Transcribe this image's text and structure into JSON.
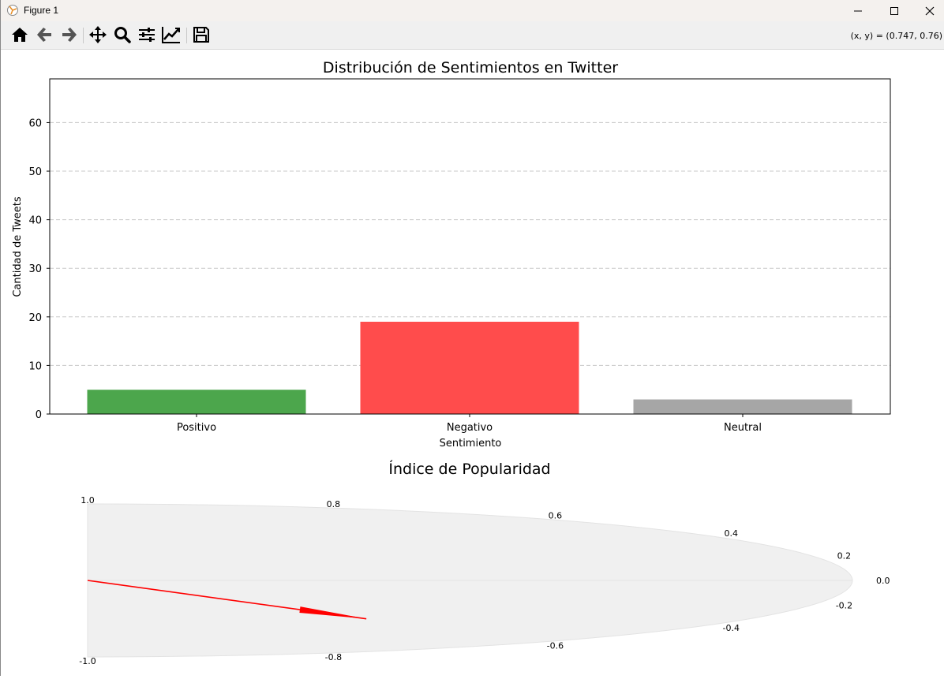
{
  "window": {
    "title": "Figure 1"
  },
  "toolbar": {
    "coord_readout": "(x, y) = (0.747, 0.76)",
    "buttons": [
      "home-icon",
      "back-icon",
      "forward-icon",
      "pan-icon",
      "zoom-icon",
      "configure-subplots-icon",
      "edit-axis-icon",
      "save-icon"
    ]
  },
  "chart_data": [
    {
      "type": "bar",
      "title": "Distribución de Sentimientos en Twitter",
      "xlabel": "Sentimiento",
      "ylabel": "Cantidad de Tweets",
      "categories": [
        "Positivo",
        "Negativo",
        "Neutral"
      ],
      "values": [
        5,
        19,
        3
      ],
      "colors": [
        "#4ca64c",
        "#ff4c4c",
        "#a6a6a6"
      ],
      "ylim": [
        0,
        69
      ],
      "yticks": [
        0,
        10,
        20,
        30,
        40,
        50,
        60
      ],
      "grid": "y-dashed"
    },
    {
      "type": "gauge",
      "title": "Índice de Popularidad",
      "range": [
        -1.0,
        1.0
      ],
      "tick_labels": [
        "1.0",
        "0.8",
        "0.6",
        "0.4",
        "0.2",
        "0.0",
        "-0.2",
        "-0.4",
        "-0.6",
        "-0.8",
        "-1.0"
      ],
      "needle_value": -0.6,
      "needle_color": "#ff0000",
      "fill_color": "#f0f0f0"
    }
  ]
}
